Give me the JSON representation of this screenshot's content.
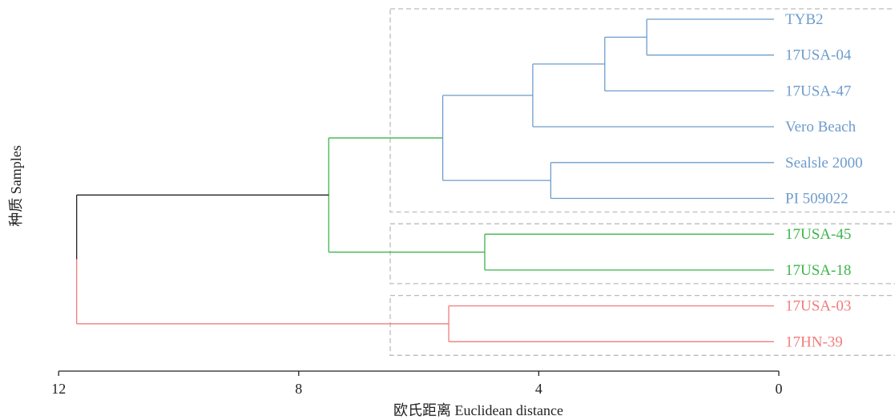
{
  "chart_data": {
    "type": "dendrogram",
    "xlabel": "欧氏距离 Euclidean distance",
    "ylabel": "种质 Samples",
    "xlim": [
      12,
      0
    ],
    "x_ticks": [
      12,
      8,
      4,
      0
    ],
    "x_tick_labels": [
      "12",
      "8",
      "4",
      "0"
    ],
    "leaves": [
      {
        "name": "TYB2",
        "cluster": "blue"
      },
      {
        "name": "17USA-04",
        "cluster": "blue"
      },
      {
        "name": "17USA-47",
        "cluster": "blue"
      },
      {
        "name": "Vero Beach",
        "cluster": "blue"
      },
      {
        "name": "Sealsle 2000",
        "cluster": "blue"
      },
      {
        "name": "PI 509022",
        "cluster": "blue"
      },
      {
        "name": "17USA-45",
        "cluster": "green"
      },
      {
        "name": "17USA-18",
        "cluster": "green"
      },
      {
        "name": "17USA-03",
        "cluster": "red"
      },
      {
        "name": "17HN-39",
        "cluster": "red"
      }
    ],
    "merges": [
      {
        "children": [
          "TYB2",
          "17USA-04"
        ],
        "distance": 2.2,
        "cluster": "blue"
      },
      {
        "children": [
          "m1",
          "17USA-47"
        ],
        "distance": 2.9,
        "cluster": "blue"
      },
      {
        "children": [
          "m2",
          "Vero Beach"
        ],
        "distance": 4.1,
        "cluster": "blue"
      },
      {
        "children": [
          "Sealsle 2000",
          "PI 509022"
        ],
        "distance": 3.8,
        "cluster": "blue"
      },
      {
        "children": [
          "m3",
          "m4"
        ],
        "distance": 5.6,
        "cluster": "blue"
      },
      {
        "children": [
          "17USA-45",
          "17USA-18"
        ],
        "distance": 4.9,
        "cluster": "green"
      },
      {
        "children": [
          "m5",
          "m6"
        ],
        "distance": 7.5,
        "cluster": "green"
      },
      {
        "children": [
          "17USA-03",
          "17HN-39"
        ],
        "distance": 5.5,
        "cluster": "red"
      },
      {
        "children": [
          "m7",
          "m8"
        ],
        "distance": 11.7,
        "cluster": "black"
      }
    ],
    "cluster_boxes": [
      {
        "cluster": "blue",
        "leaves": [
          "TYB2",
          "PI 509022"
        ]
      },
      {
        "cluster": "green",
        "leaves": [
          "17USA-45",
          "17USA-18"
        ]
      },
      {
        "cluster": "red",
        "leaves": [
          "17USA-03",
          "17HN-39"
        ]
      }
    ],
    "colors": {
      "blue": "#6d9ccc",
      "green": "#3bb54a",
      "red": "#f07c7c",
      "black": "#222222",
      "box": "#bbbbbb"
    }
  }
}
